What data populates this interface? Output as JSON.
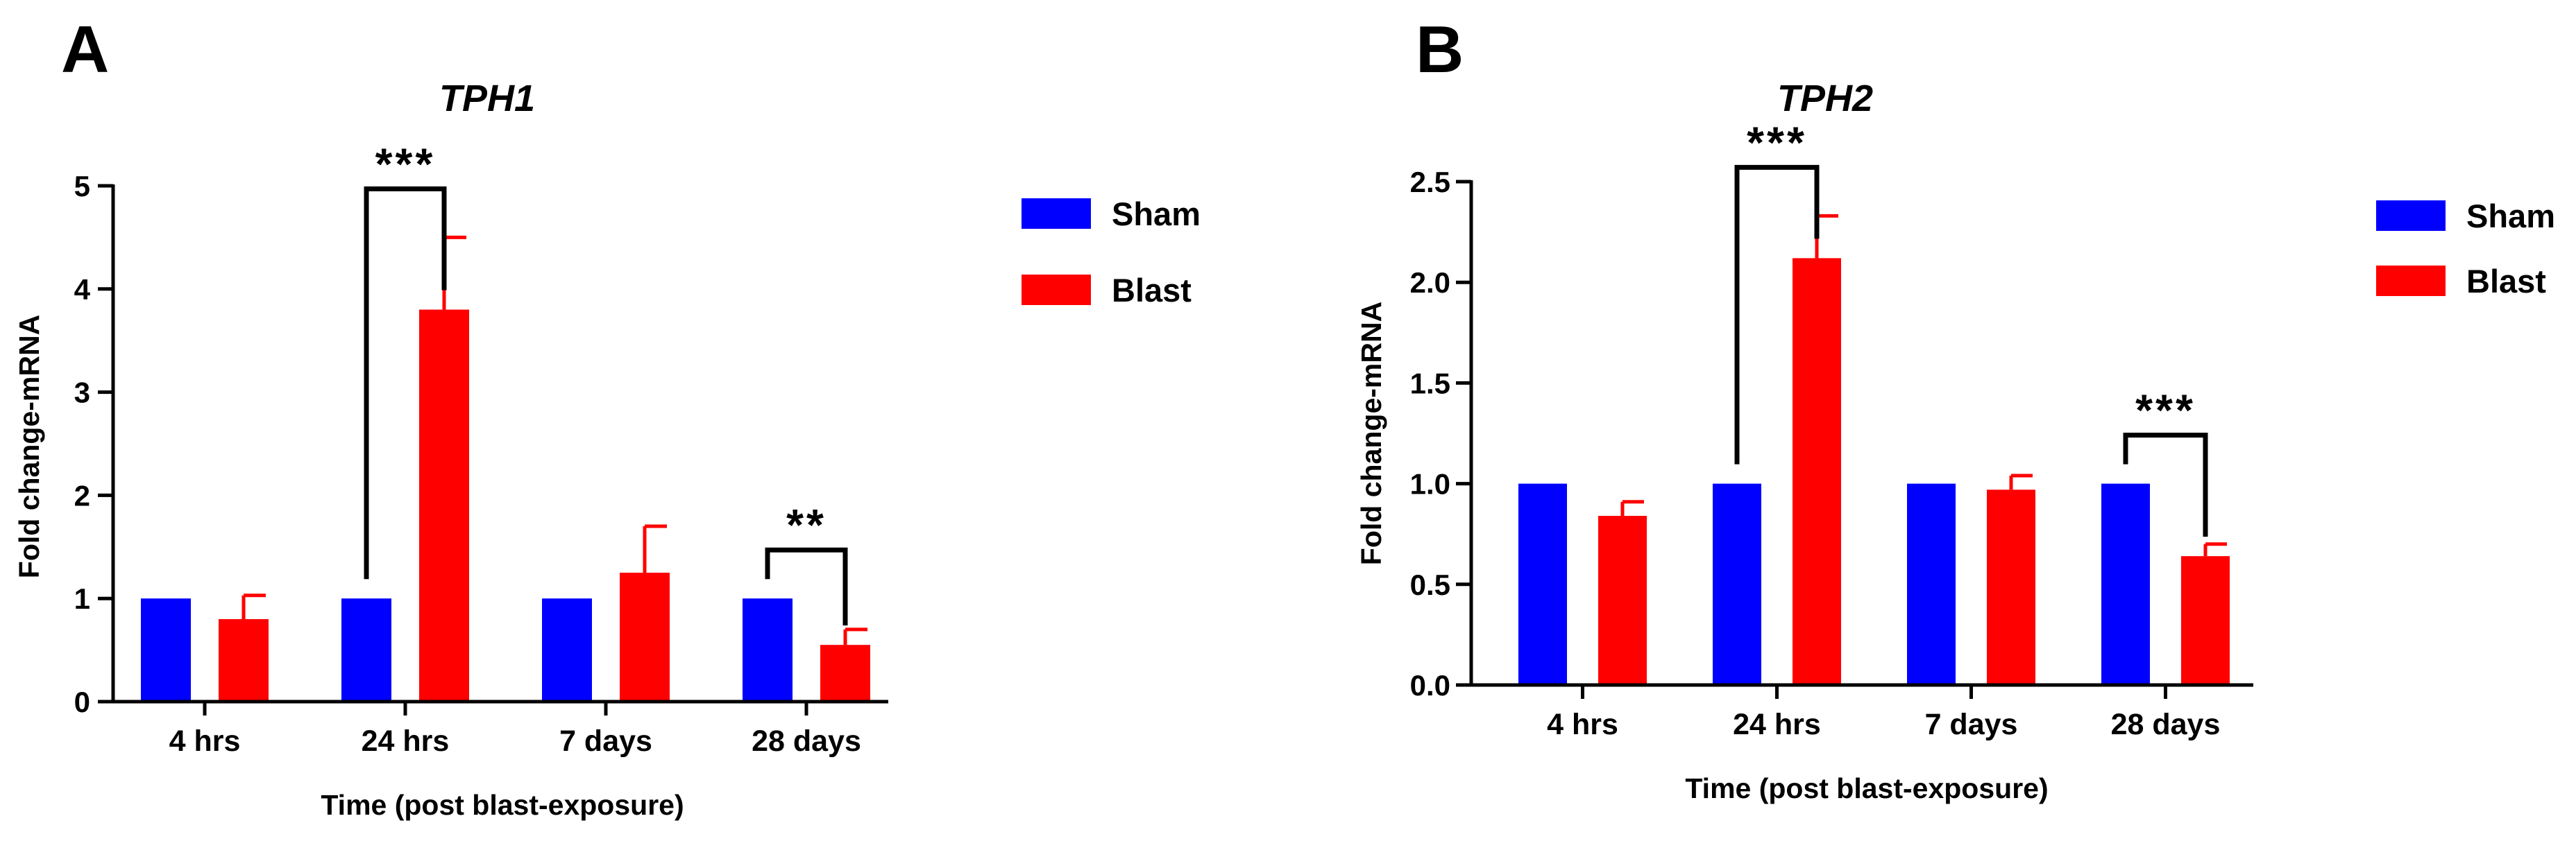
{
  "chart_data": [
    {
      "panel": "A",
      "type": "bar",
      "title": "TPH1",
      "xlabel": "Time (post blast-exposure)",
      "ylabel": "Fold change-mRNA",
      "ylim": [
        0,
        5
      ],
      "yticks": [
        0,
        1,
        2,
        3,
        4,
        5
      ],
      "ytick_labels": [
        "0",
        "1",
        "2",
        "3",
        "4",
        "5"
      ],
      "categories": [
        "4 hrs",
        "24 hrs",
        "7 days",
        "28 days"
      ],
      "series": [
        {
          "name": "Sham",
          "color": "#0000ff",
          "values": [
            1.0,
            1.0,
            1.0,
            1.0
          ],
          "errors": [
            0,
            0,
            0,
            0
          ]
        },
        {
          "name": "Blast",
          "color": "#ff0000",
          "values": [
            0.8,
            3.8,
            1.25,
            0.55
          ],
          "errors": [
            0.23,
            0.7,
            0.45,
            0.15
          ]
        }
      ],
      "significance": [
        {
          "category": "24 hrs",
          "label": "***",
          "left_y": 1.0,
          "right_y": 3.8
        },
        {
          "category": "28 days",
          "label": "**",
          "left_y": 1.0,
          "right_y": 0.55
        }
      ],
      "legend_position": "right"
    },
    {
      "panel": "B",
      "type": "bar",
      "title": "TPH2",
      "xlabel": "Time (post blast-exposure)",
      "ylabel": "Fold change-mRNA",
      "ylim": [
        0,
        2.5
      ],
      "yticks": [
        0,
        0.5,
        1.0,
        1.5,
        2.0,
        2.5
      ],
      "ytick_labels": [
        "0.0",
        "0.5",
        "1.0",
        "1.5",
        "2.0",
        "2.5"
      ],
      "categories": [
        "4 hrs",
        "24 hrs",
        "7 days",
        "28 days"
      ],
      "series": [
        {
          "name": "Sham",
          "color": "#0000ff",
          "values": [
            1.0,
            1.0,
            1.0,
            1.0
          ],
          "errors": [
            0,
            0,
            0,
            0
          ]
        },
        {
          "name": "Blast",
          "color": "#ff0000",
          "values": [
            0.84,
            2.12,
            0.97,
            0.64
          ],
          "errors": [
            0.07,
            0.21,
            0.07,
            0.06
          ]
        }
      ],
      "significance": [
        {
          "category": "24 hrs",
          "label": "***",
          "left_y": 1.0,
          "right_y": 2.12
        },
        {
          "category": "28 days",
          "label": "***",
          "left_y": 1.0,
          "right_y": 0.64
        }
      ],
      "legend_position": "right"
    }
  ]
}
